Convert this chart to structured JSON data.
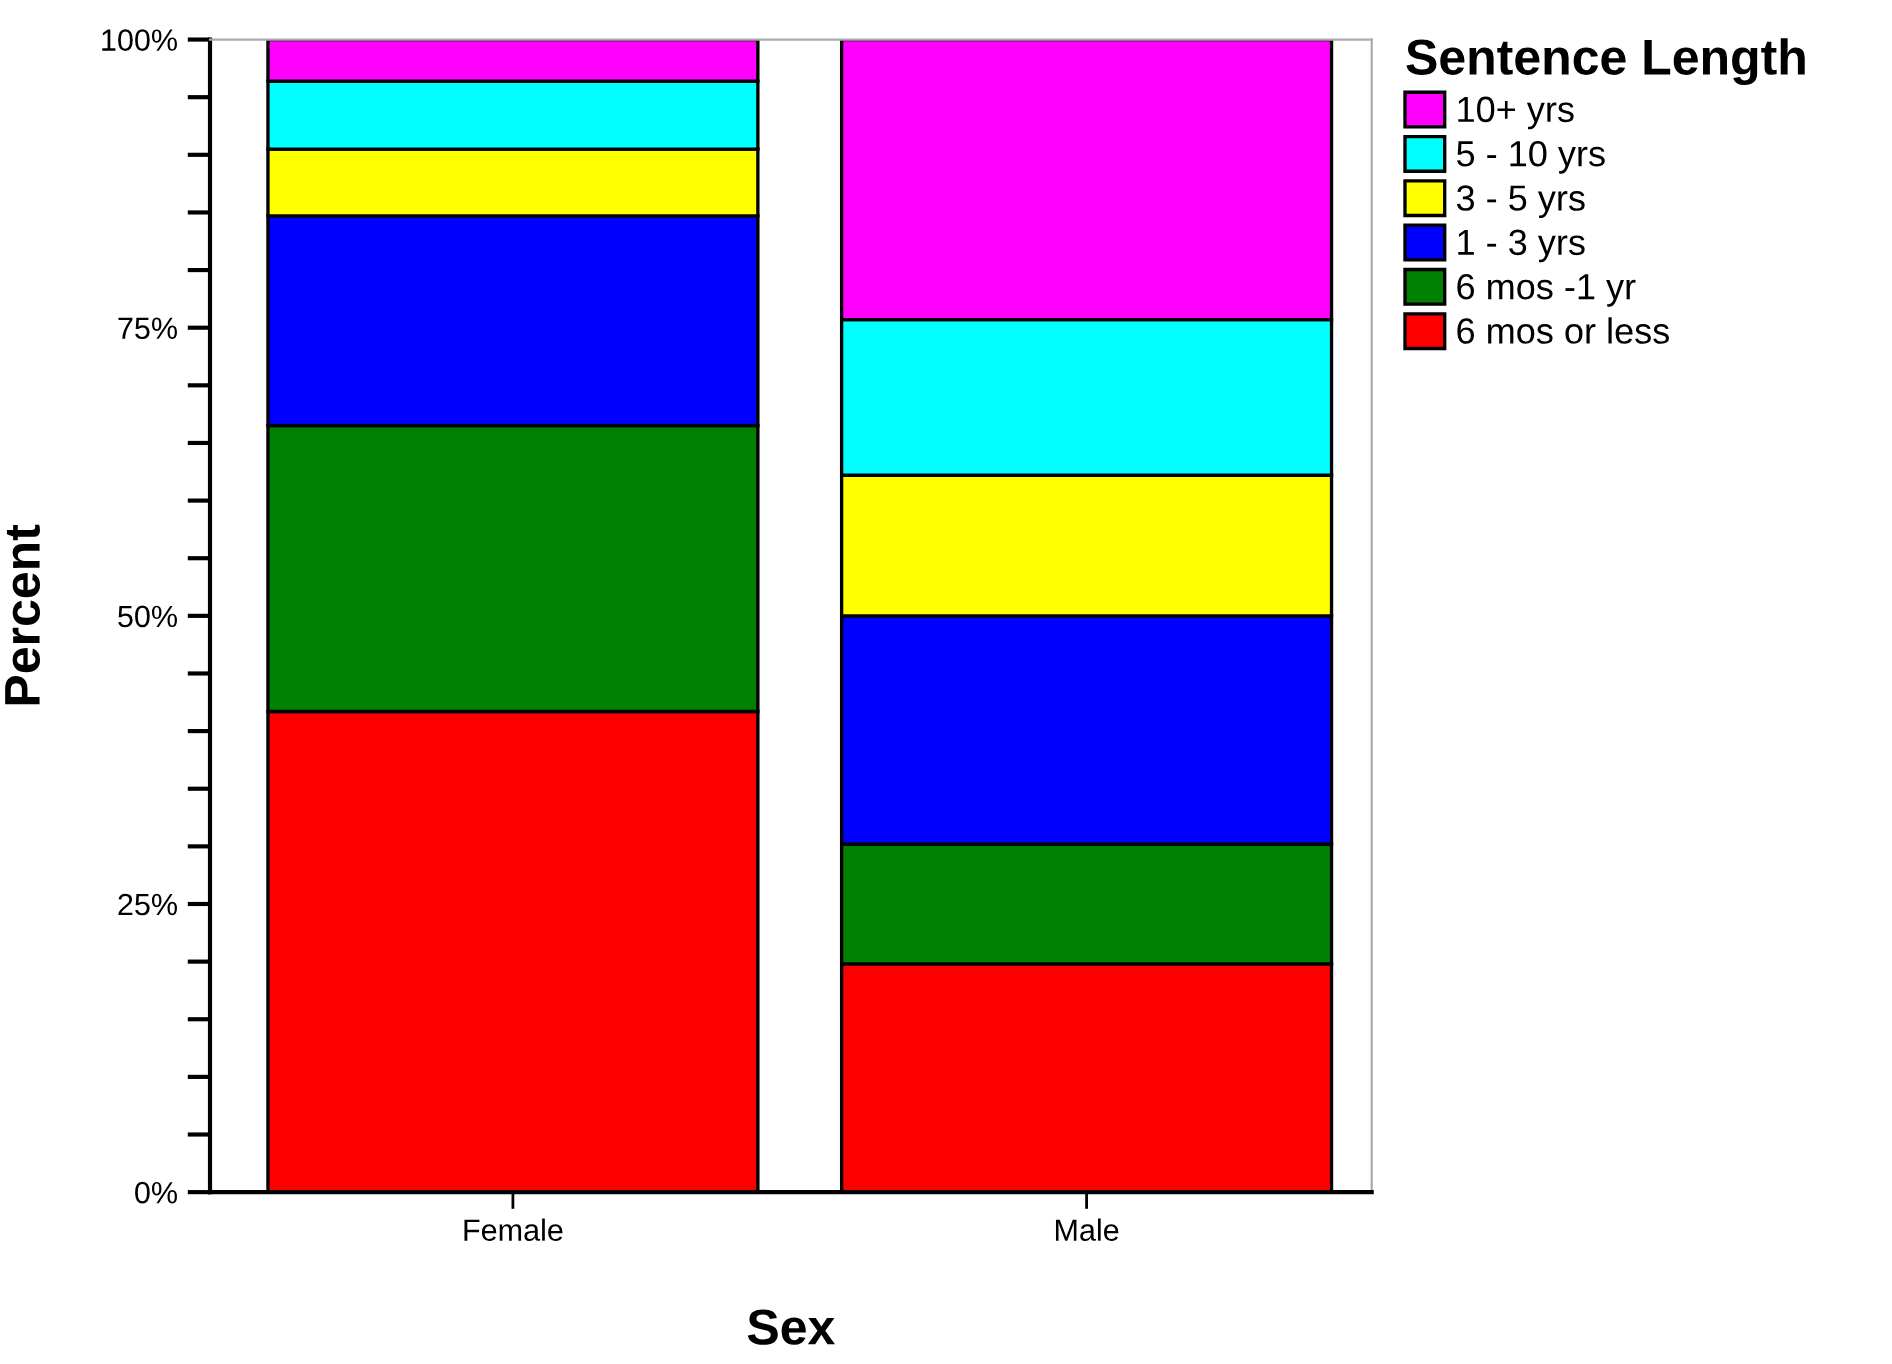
{
  "chart_data": {
    "type": "bar",
    "stacked": true,
    "xlabel": "Sex",
    "ylabel": "Percent",
    "legend_title": "Sentence Length",
    "legend": "top right",
    "categories": [
      "Female",
      "Male"
    ],
    "series": [
      {
        "name": "6 mos or less",
        "color": "#ff0000",
        "values": [
          41.7,
          19.8
        ]
      },
      {
        "name": "6 mos -1 yr",
        "color": "#008000",
        "values": [
          24.8,
          10.4
        ]
      },
      {
        "name": "1 - 3 yrs",
        "color": "#0000ff",
        "values": [
          18.2,
          19.8
        ]
      },
      {
        "name": "3 - 5 yrs",
        "color": "#ffff00",
        "values": [
          5.8,
          12.2
        ]
      },
      {
        "name": "5 - 10 yrs",
        "color": "#00ffff",
        "values": [
          5.9,
          13.5
        ]
      },
      {
        "name": "10+ yrs",
        "color": "#ff00ff",
        "values": [
          3.6,
          24.3
        ]
      }
    ],
    "ylim": [
      0,
      100
    ],
    "yticks": [
      {
        "value": 0,
        "label": "0%"
      },
      {
        "value": 5,
        "label": null
      },
      {
        "value": 10,
        "label": null
      },
      {
        "value": 15,
        "label": null
      },
      {
        "value": 20,
        "label": null
      },
      {
        "value": 25,
        "label": "25%"
      },
      {
        "value": 30,
        "label": null
      },
      {
        "value": 35,
        "label": null
      },
      {
        "value": 40,
        "label": null
      },
      {
        "value": 45,
        "label": null
      },
      {
        "value": 50,
        "label": "50%"
      },
      {
        "value": 55,
        "label": null
      },
      {
        "value": 60,
        "label": null
      },
      {
        "value": 65,
        "label": null
      },
      {
        "value": 70,
        "label": null
      },
      {
        "value": 75,
        "label": "75%"
      },
      {
        "value": 80,
        "label": null
      },
      {
        "value": 85,
        "label": null
      },
      {
        "value": 90,
        "label": null
      },
      {
        "value": 95,
        "label": null
      },
      {
        "value": 100,
        "label": "100%"
      }
    ],
    "grid": false
  }
}
